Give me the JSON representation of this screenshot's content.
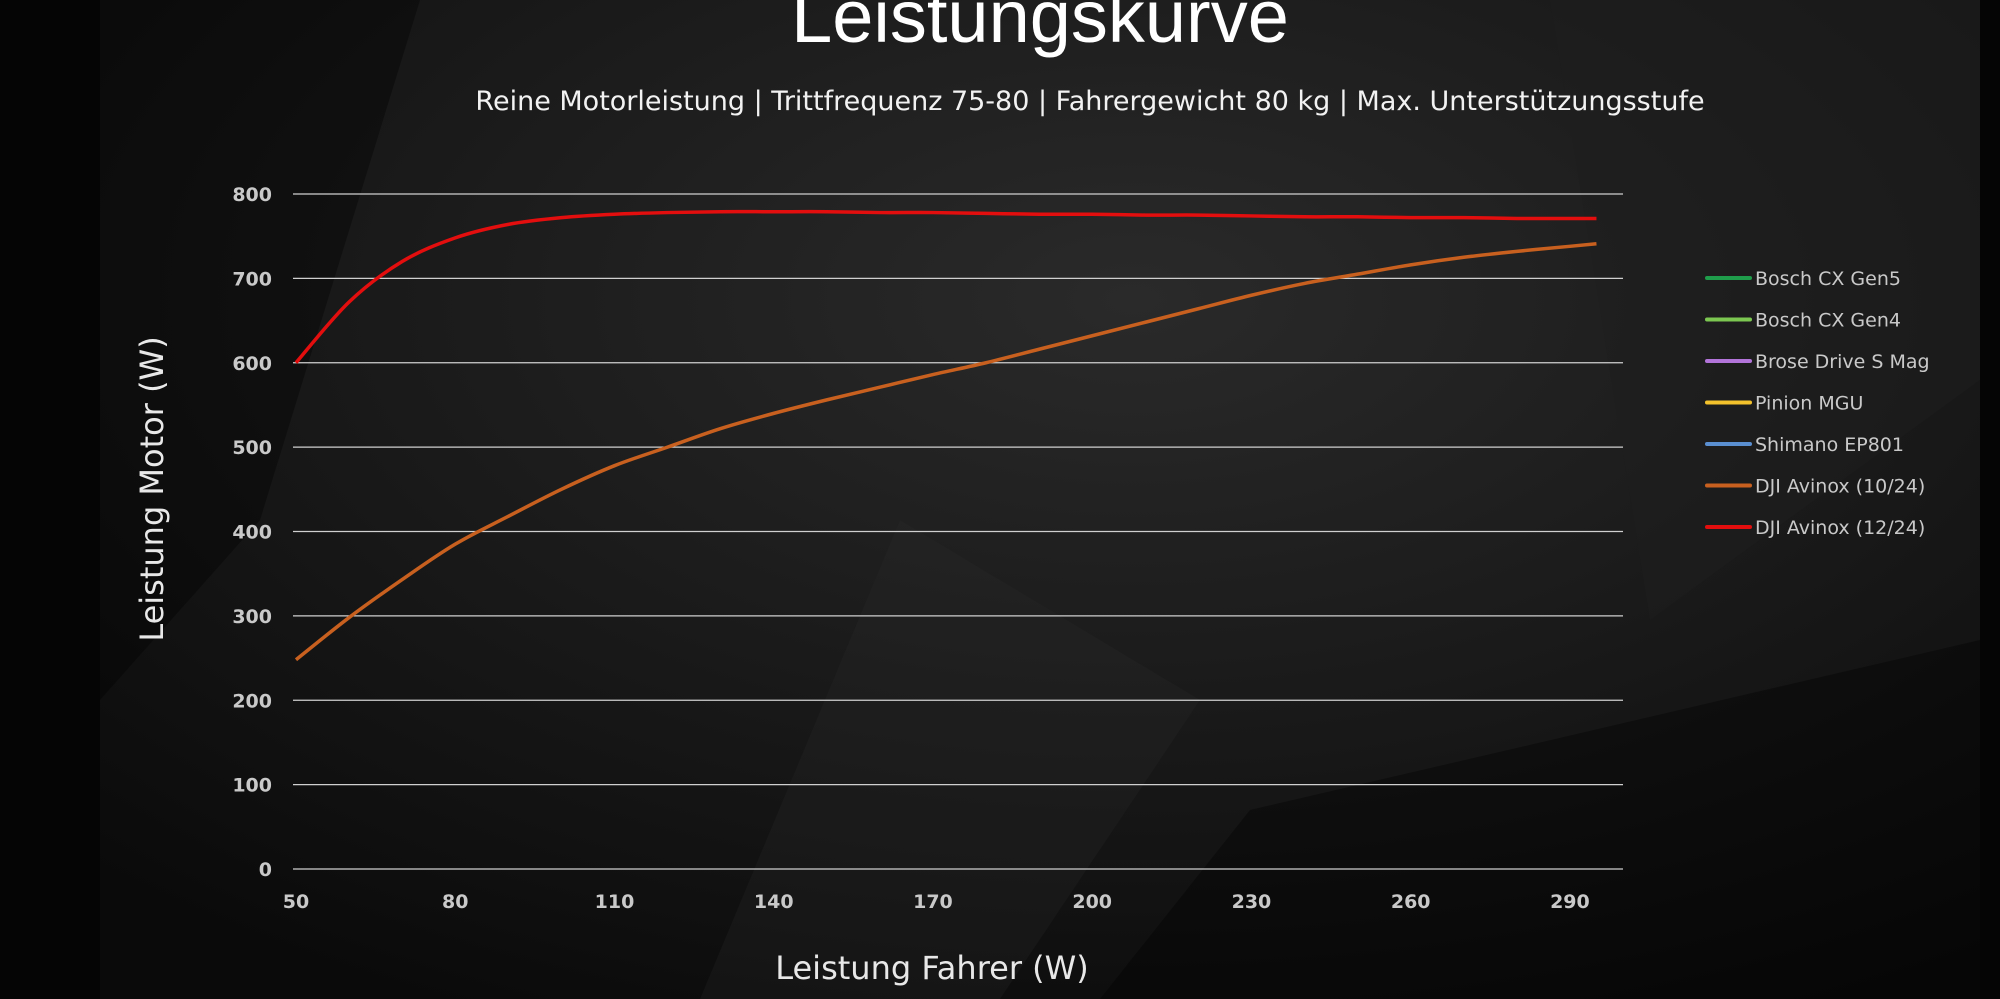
{
  "chart_data": {
    "type": "line",
    "title": "Leistungskurve",
    "subtitle": "Reine Motorleistung | Trittfrequenz 75-80 | Fahrergewicht 80 kg  |  Max. Unterstützungsstufe",
    "x_label": "Leistung Fahrer (W)",
    "y_label": "Leistung Motor (W)",
    "x": [
      50,
      60,
      70,
      80,
      90,
      100,
      110,
      120,
      130,
      140,
      150,
      160,
      170,
      180,
      190,
      200,
      210,
      220,
      230,
      240,
      250,
      260,
      270,
      280,
      290,
      295
    ],
    "xlim": [
      50,
      300
    ],
    "xticks": [
      50,
      80,
      110,
      140,
      170,
      200,
      230,
      260,
      290
    ],
    "ylim": [
      0,
      800
    ],
    "yticks": [
      0,
      100,
      200,
      300,
      400,
      500,
      600,
      700,
      800
    ],
    "grid": true,
    "legend": "right",
    "series": [
      {
        "name": "Bosch CX Gen5",
        "color": "#1f9d4b",
        "values": [
          null,
          null,
          null,
          null,
          null,
          null,
          null,
          null,
          null,
          null,
          null,
          null,
          null,
          null,
          null,
          null,
          null,
          null,
          null,
          null,
          null,
          null,
          null,
          null,
          null,
          null
        ]
      },
      {
        "name": "Bosch CX Gen4",
        "color": "#7cc751",
        "values": [
          null,
          null,
          null,
          null,
          null,
          null,
          null,
          null,
          null,
          null,
          null,
          null,
          null,
          null,
          null,
          null,
          null,
          null,
          null,
          null,
          null,
          null,
          null,
          null,
          null,
          null
        ]
      },
      {
        "name": "Brose Drive S Mag",
        "color": "#b274d9",
        "values": [
          null,
          null,
          null,
          null,
          null,
          null,
          null,
          null,
          null,
          null,
          null,
          null,
          null,
          null,
          null,
          null,
          null,
          null,
          null,
          null,
          null,
          null,
          null,
          null,
          null,
          null
        ]
      },
      {
        "name": "Pinion MGU",
        "color": "#f3c22c",
        "values": [
          null,
          null,
          null,
          null,
          null,
          null,
          null,
          null,
          null,
          null,
          null,
          null,
          null,
          null,
          null,
          null,
          null,
          null,
          null,
          null,
          null,
          null,
          null,
          null,
          null,
          null
        ]
      },
      {
        "name": "Shimano EP801",
        "color": "#5a8fd1",
        "values": [
          null,
          null,
          null,
          null,
          null,
          null,
          null,
          null,
          null,
          null,
          null,
          null,
          null,
          null,
          null,
          null,
          null,
          null,
          null,
          null,
          null,
          null,
          null,
          null,
          null,
          null
        ]
      },
      {
        "name": "DJI Avinox (10/24)",
        "color": "#c8601f",
        "values": [
          248,
          298,
          343,
          385,
          418,
          450,
          478,
          500,
          522,
          540,
          556,
          571,
          586,
          600,
          616,
          632,
          648,
          664,
          680,
          694,
          705,
          716,
          725,
          732,
          738,
          741
        ]
      },
      {
        "name": "DJI Avinox (12/24)",
        "color": "#e30e0e",
        "values": [
          600,
          672,
          720,
          748,
          764,
          772,
          776,
          778,
          779,
          779,
          779,
          778,
          778,
          777,
          776,
          776,
          775,
          775,
          774,
          773,
          773,
          772,
          772,
          771,
          771,
          771
        ]
      }
    ]
  }
}
